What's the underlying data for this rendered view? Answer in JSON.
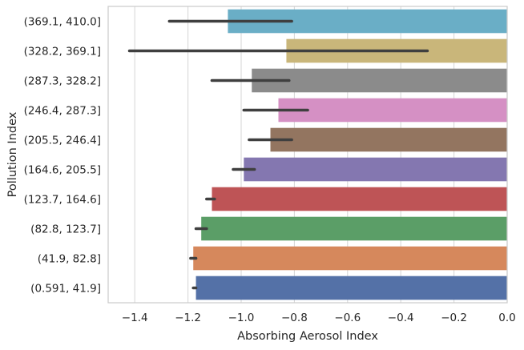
{
  "chart_data": {
    "type": "bar",
    "orientation": "horizontal",
    "xlabel": "Absorbing Aerosol Index",
    "ylabel": "Pollution Index",
    "xlim": [
      -1.5,
      0.0
    ],
    "xticks": [
      -1.4,
      -1.2,
      -1.0,
      -0.8,
      -0.6,
      -0.4,
      -0.2,
      0.0
    ],
    "xtick_labels": [
      "−1.4",
      "−1.2",
      "−1.0",
      "−0.8",
      "−0.6",
      "−0.4",
      "−0.2",
      "0.0"
    ],
    "grid": "vertical",
    "categories": [
      "(369.1, 410.0]",
      "(328.2, 369.1]",
      "(287.3, 328.2]",
      "(246.4, 287.3]",
      "(205.5, 246.4]",
      "(164.6, 205.5]",
      "(123.7, 164.6]",
      "(82.8, 123.7]",
      "(41.9, 82.8]",
      "(0.591, 41.9]"
    ],
    "values": [
      -1.05,
      -0.83,
      -0.96,
      -0.86,
      -0.89,
      -0.99,
      -1.11,
      -1.15,
      -1.18,
      -1.17
    ],
    "error_low": [
      -1.27,
      -1.42,
      -1.11,
      -0.99,
      -0.97,
      -1.03,
      -1.13,
      -1.17,
      -1.19,
      -1.18
    ],
    "error_high": [
      -0.81,
      -0.3,
      -0.82,
      -0.75,
      -0.81,
      -0.95,
      -1.1,
      -1.13,
      -1.17,
      -1.17
    ],
    "colors": [
      "#6aaec6",
      "#c9b67a",
      "#8b8b8b",
      "#d590c4",
      "#937560",
      "#8477b0",
      "#be5456",
      "#5b9e67",
      "#d6885c",
      "#5471a7"
    ],
    "error_color": "#3f3f3f"
  }
}
